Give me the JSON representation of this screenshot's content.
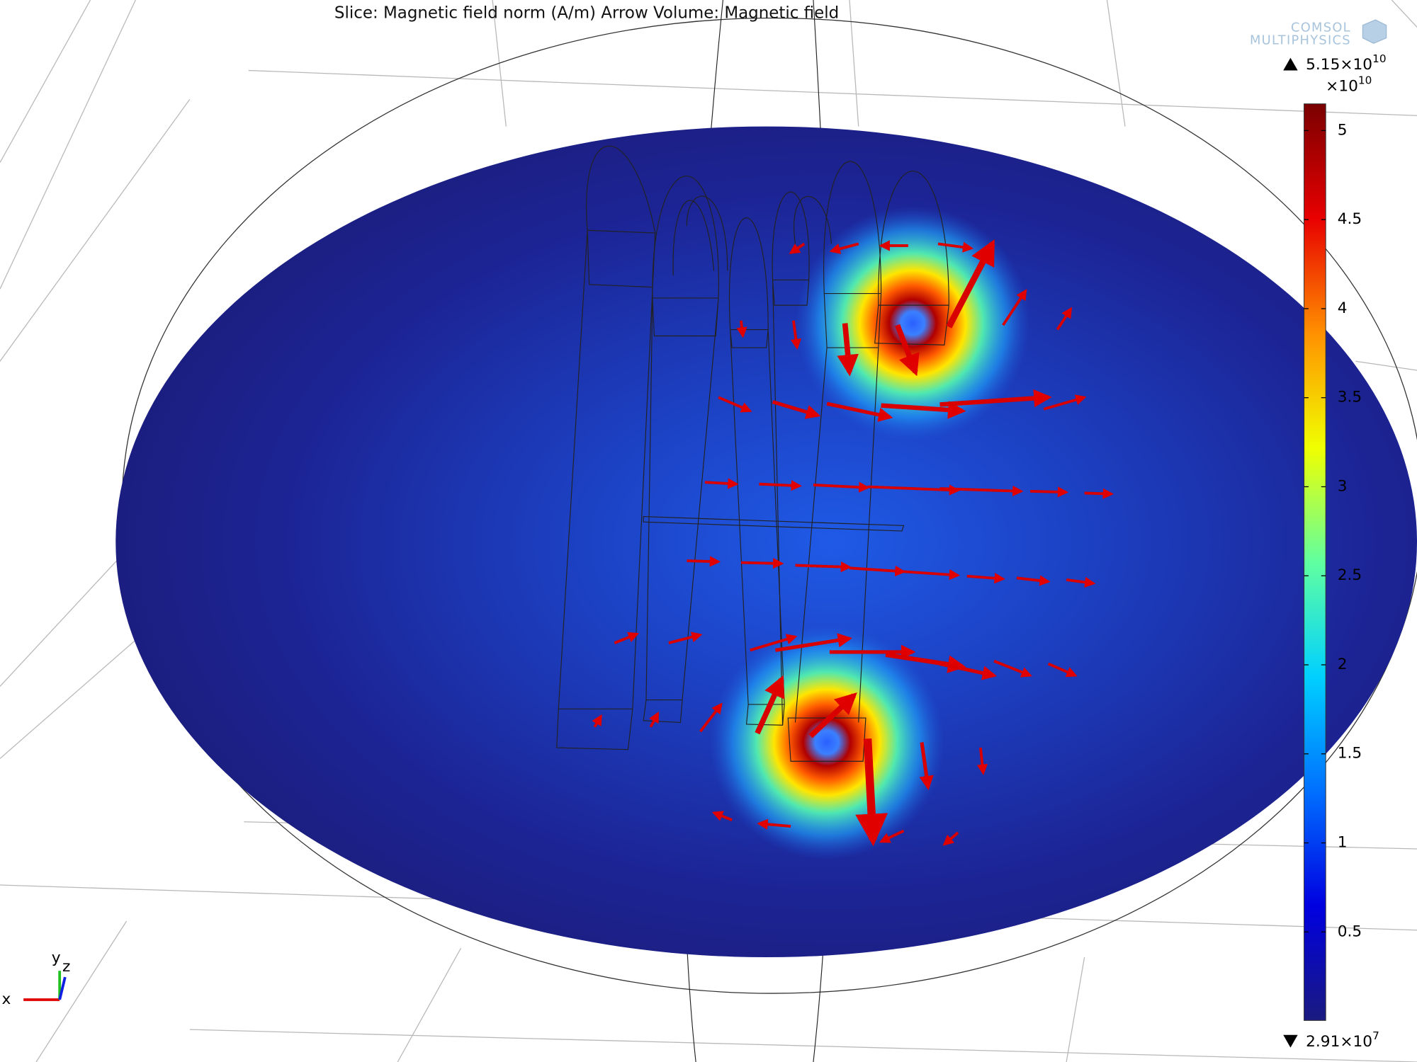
{
  "chart_data": {
    "type": "slice",
    "title": "Slice: Magnetic field norm (A/m)  Arrow Volume: Magnetic field",
    "colorbar": {
      "max_label": {
        "text": "5.15×10",
        "exp": "10"
      },
      "multiplier": {
        "text": "×10",
        "exp": "10"
      },
      "min_label": {
        "text": "2.91×10",
        "exp": "7"
      },
      "clim": [
        0.00291,
        5.15
      ],
      "ticks": [
        0.5,
        1,
        1.5,
        2,
        2.5,
        3,
        3.5,
        4,
        4.5,
        5
      ],
      "colormap": [
        "#1a1a80",
        "#0000e0",
        "#0070ff",
        "#00d0ff",
        "#60ffa0",
        "#f0ff00",
        "#ff9000",
        "#e80000",
        "#7a0000"
      ]
    },
    "axes": {
      "x": "x",
      "y": "y",
      "z": "z"
    },
    "logo": [
      "COMSOL",
      "MULTIPHYSICS"
    ]
  }
}
